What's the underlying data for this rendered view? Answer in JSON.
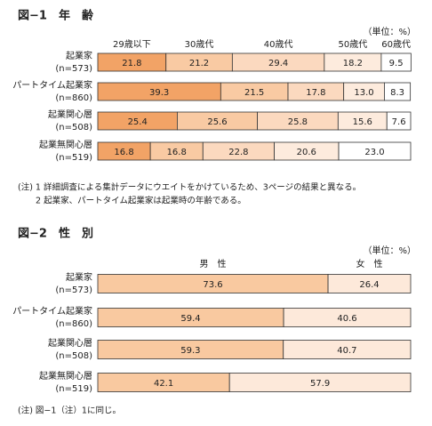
{
  "chart_data": [
    {
      "type": "bar",
      "orientation": "horizontal",
      "stacked": true,
      "title": "図−1　年　齢",
      "unit": "（単位：%）",
      "categories": [
        "起業家",
        "パートタイム起業家",
        "起業関心層",
        "起業無関心層"
      ],
      "sample_sizes": [
        "(n=573)",
        "(n=860)",
        "(n=508)",
        "(n=519)"
      ],
      "xlim": [
        0,
        100
      ],
      "series": [
        {
          "name": "29歳以下",
          "color": "#f2a366",
          "values": [
            21.8,
            39.3,
            25.4,
            16.8
          ]
        },
        {
          "name": "30歳代",
          "color": "#f9caa3",
          "values": [
            21.2,
            21.5,
            25.6,
            16.8
          ]
        },
        {
          "name": "40歳代",
          "color": "#fbd9bf",
          "values": [
            29.4,
            17.8,
            25.8,
            22.8
          ]
        },
        {
          "name": "50歳代",
          "color": "#fdebdd",
          "values": [
            18.2,
            13.0,
            15.6,
            20.6
          ],
          "value_labels": [
            "18.2",
            "13.0",
            "15.6",
            "20.6"
          ]
        },
        {
          "name": "60歳代",
          "color": "#ffffff",
          "values": [
            9.5,
            8.3,
            7.6,
            23.0
          ],
          "value_labels": [
            "9.5",
            "8.3",
            "7.6",
            "23.0"
          ]
        }
      ],
      "notes": [
        "(注)  1  詳細調査による集計データにウエイトをかけているため、3ページの結果と異なる。",
        "2  起業家、パートタイム起業家は起業時の年齢である。"
      ]
    },
    {
      "type": "bar",
      "orientation": "horizontal",
      "stacked": true,
      "title": "図−2　性　別",
      "unit": "（単位：%）",
      "categories": [
        "起業家",
        "パートタイム起業家",
        "起業関心層",
        "起業無関心層"
      ],
      "sample_sizes": [
        "(n=573)",
        "(n=860)",
        "(n=508)",
        "(n=519)"
      ],
      "xlim": [
        0,
        100
      ],
      "series": [
        {
          "name": "男　性",
          "color": "#f9c9a0",
          "values": [
            73.6,
            59.4,
            59.3,
            42.1
          ]
        },
        {
          "name": "女　性",
          "color": "#fde9da",
          "values": [
            26.4,
            40.6,
            40.7,
            57.9
          ]
        }
      ],
      "notes": [
        "(注)  図−1（注）1に同じ。"
      ]
    }
  ]
}
